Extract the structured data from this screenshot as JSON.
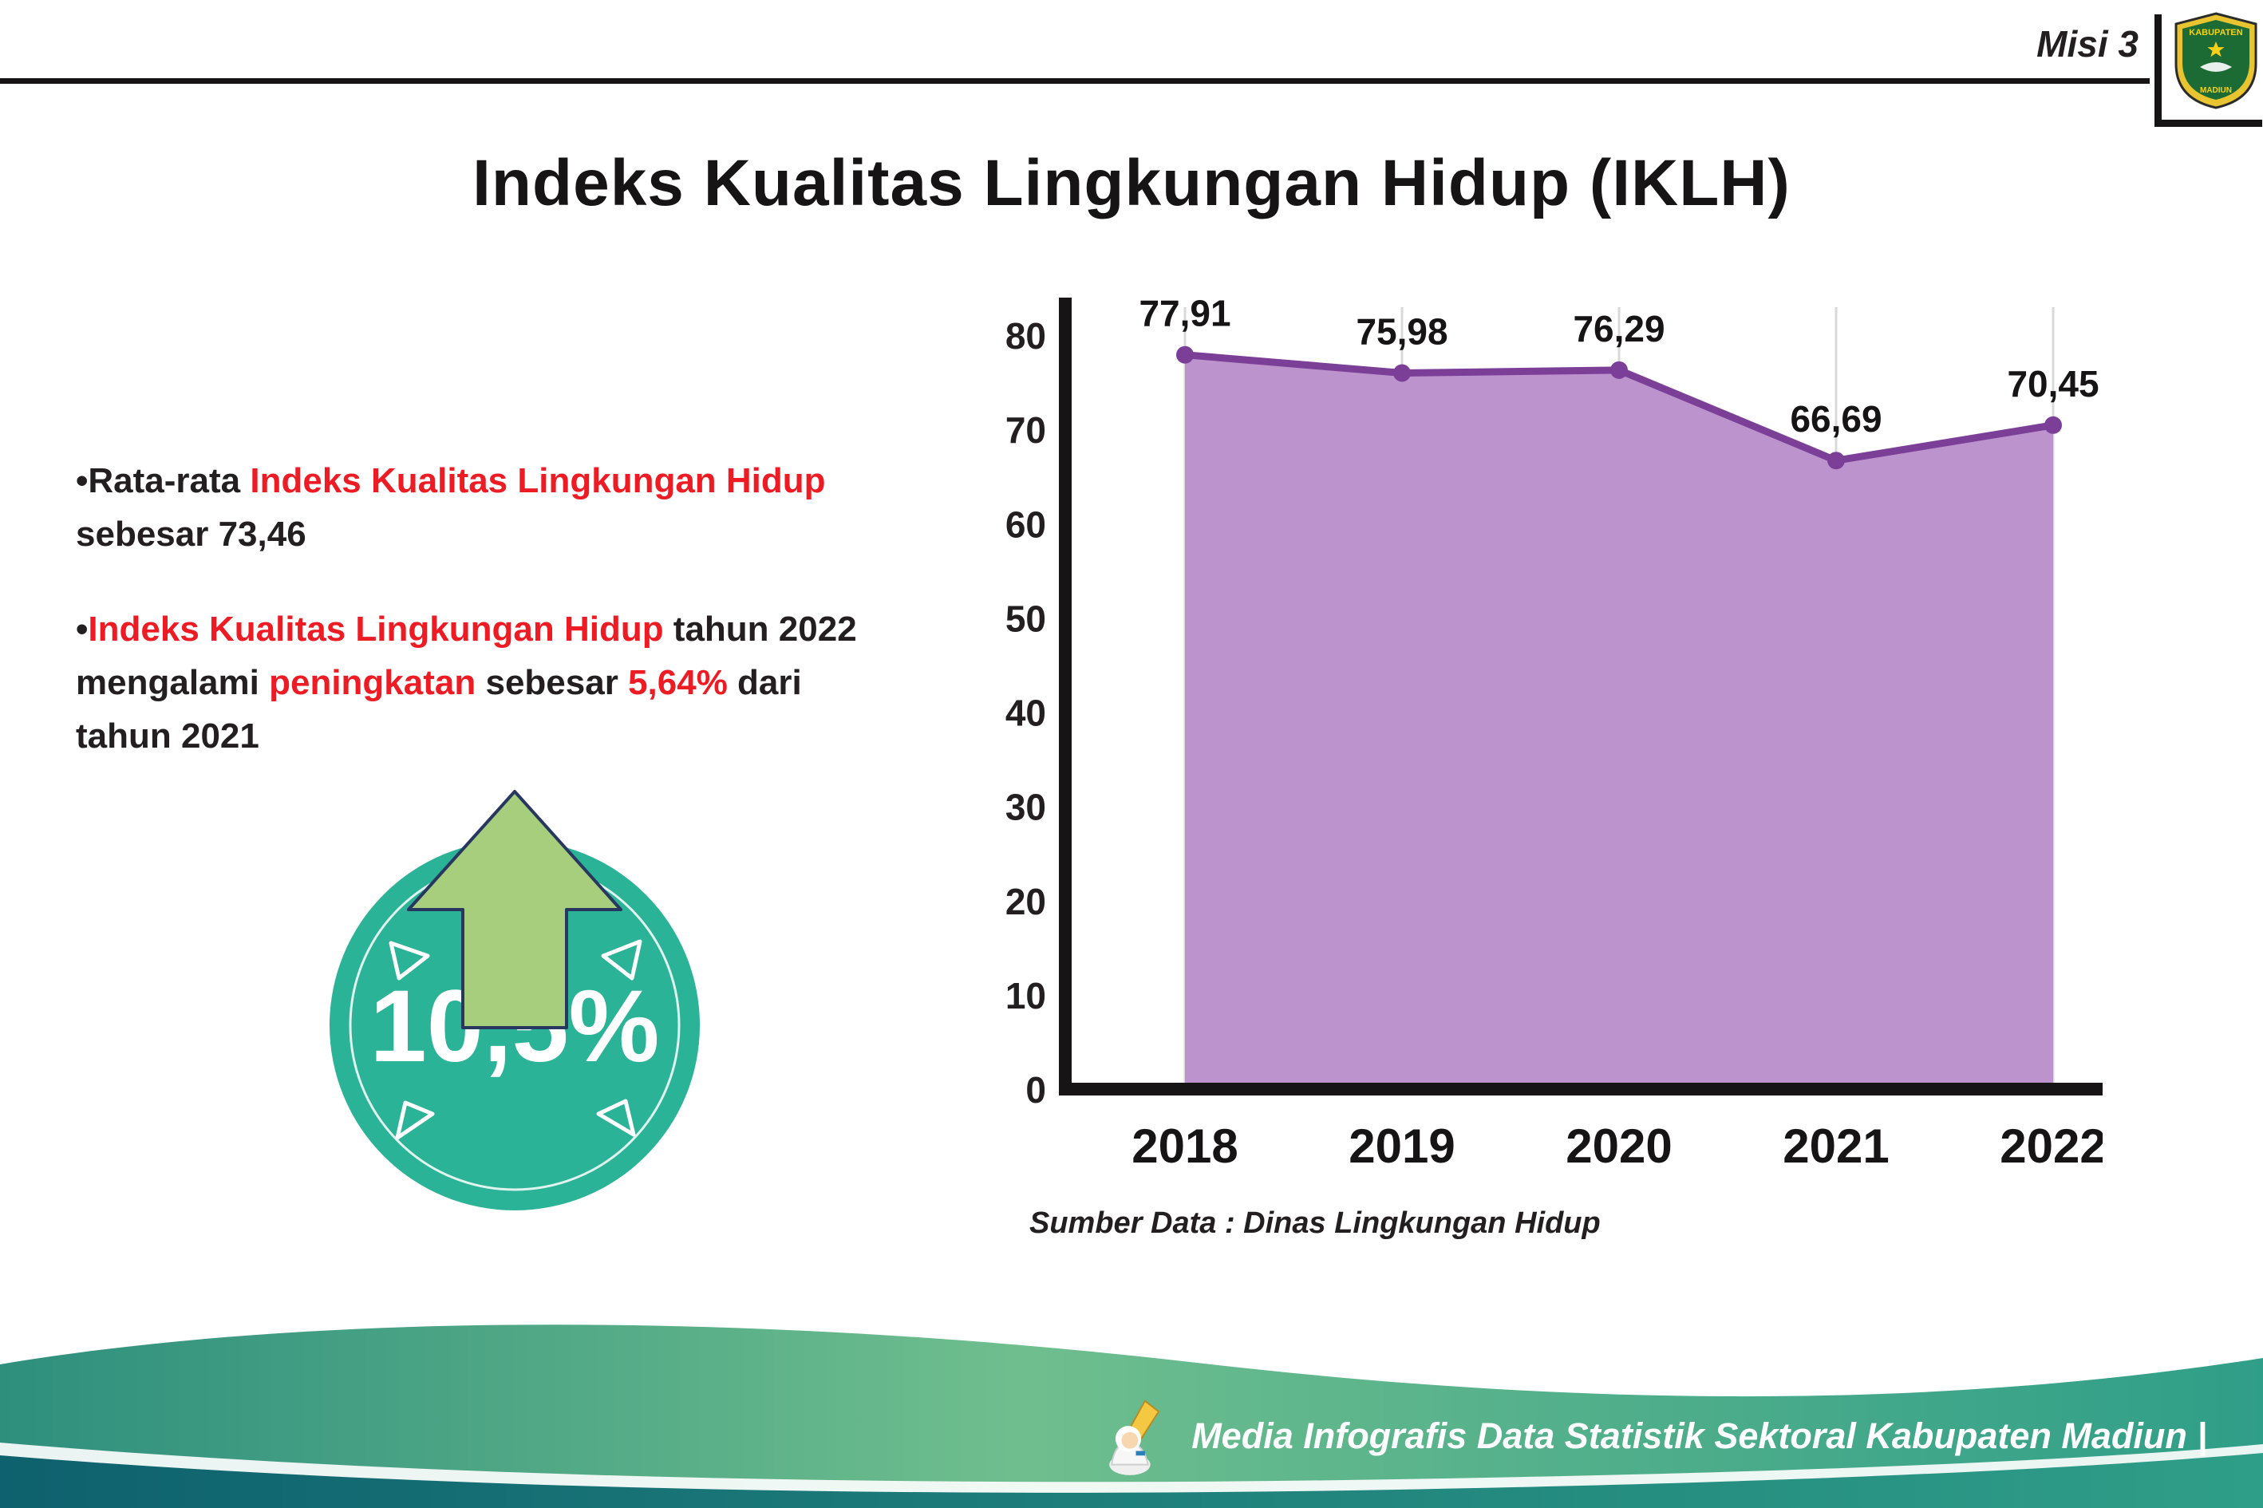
{
  "header": {
    "misi_label": "Misi 3",
    "title": "Indeks Kualitas Lingkungan Hidup (IKLH)",
    "logo": {
      "name": "kabupaten-madiun-emblem",
      "top_text": "KABUPATEN",
      "bottom_text": "MADIUN"
    }
  },
  "bullets": [
    {
      "segments": [
        {
          "text": "•Rata-rata ",
          "color": "dark"
        },
        {
          "text": "Indeks Kualitas Lingkungan Hidup",
          "color": "red"
        },
        {
          "text": "sebesar 73,46",
          "color": "dark"
        }
      ]
    },
    {
      "segments": [
        {
          "text": "•",
          "color": "dark"
        },
        {
          "text": "Indeks Kualitas Lingkungan Hidup",
          "color": "red"
        },
        {
          "text": " tahun 2022",
          "color": "dark"
        },
        {
          "text": "mengalami ",
          "color": "dark"
        },
        {
          "text": "peningkatan",
          "color": "red"
        },
        {
          "text": " sebesar ",
          "color": "dark"
        },
        {
          "text": "5,64%",
          "color": "red"
        },
        {
          "text": " dari",
          "color": "dark"
        },
        {
          "text": "tahun 2021",
          "color": "dark"
        }
      ]
    }
  ],
  "badge": {
    "value": "10,5%"
  },
  "icons": {
    "up_arrow": "up-arrow-shape",
    "mascot": "writer-mascot",
    "logo": "kabupaten-madiun-emblem"
  },
  "colors": {
    "red": "#ed1c24",
    "dark": "#231f20",
    "badge_teal": "#2ab396",
    "arrow_green": "#a6ce7c",
    "purple_area": "#bd93ce",
    "purple_line": "#7b3f98"
  },
  "chart_data": {
    "type": "area",
    "title": "Indeks Kualitas Lingkungan Hidup (IKLH)",
    "x": [
      "2018",
      "2019",
      "2020",
      "2021",
      "2022"
    ],
    "series": [
      {
        "name": "IKLH",
        "values": [
          77.91,
          75.98,
          76.29,
          66.69,
          70.45
        ]
      }
    ],
    "point_labels": [
      "77,91",
      "75,98",
      "76,29",
      "66,69",
      "70,45"
    ],
    "xlabel": "",
    "ylabel": "",
    "ylim": [
      0,
      80
    ],
    "ytick_step": 10,
    "grid": "vertical-only",
    "grid_color": "#d9d9d9",
    "area_color": "#bd93ce",
    "line_color": "#7b3f98",
    "legend": "none",
    "source": "Sumber Data : Dinas Lingkungan Hidup"
  },
  "footer": {
    "caption": "Media Infografis Data Statistik Sektoral Kabupaten Madiun |"
  }
}
